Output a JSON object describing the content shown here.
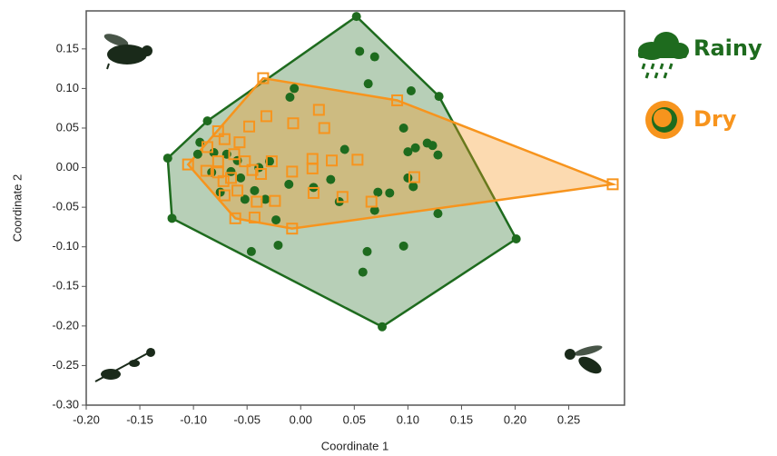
{
  "chart_data": {
    "type": "scatter",
    "hull": true,
    "x_label": "Coordinate 1",
    "y_label": "Coordinate 2",
    "xlim": [
      -0.2,
      0.302
    ],
    "ylim": [
      -0.3,
      0.198
    ],
    "xticks": [
      {
        "value": -0.2,
        "label": "-0.20"
      },
      -0.15,
      {
        "value": -0.1,
        "label": "-0.10"
      },
      -0.05,
      {
        "value": 0,
        "label": "0.00"
      },
      0.05,
      {
        "value": 0.1,
        "label": "0.10"
      },
      0.15,
      {
        "value": 0.2,
        "label": "0.20"
      },
      0.25
    ],
    "yticks": [
      0.15,
      {
        "value": 0.1,
        "label": "0.10"
      },
      0.05,
      {
        "value": 0,
        "label": "0.00"
      },
      -0.05,
      {
        "value": -0.1,
        "label": "-0.10"
      },
      -0.15,
      {
        "value": -0.2,
        "label": "-0.20"
      },
      -0.25,
      {
        "value": -0.3,
        "label": "-0.30"
      }
    ],
    "series": [
      {
        "name": "Rainy",
        "color": "#1e6b1e",
        "marker": "circle",
        "x": [
          0.052,
          0.129,
          0.201,
          0.076,
          -0.12,
          -0.124,
          -0.087,
          0.055,
          0.069,
          0.063,
          0.103,
          -0.006,
          -0.01,
          0.096,
          0.107,
          0.1,
          0.118,
          0.123,
          0.128,
          0.041,
          0.028,
          0.1,
          0.105,
          0.083,
          0.072,
          0.069,
          0.128,
          0.036,
          0.012,
          -0.011,
          -0.023,
          -0.021,
          -0.046,
          0.062,
          0.058,
          0.096,
          -0.094,
          -0.096,
          -0.081,
          -0.069,
          -0.059,
          -0.065,
          -0.056,
          -0.052,
          -0.043,
          -0.033,
          -0.029,
          -0.039,
          -0.075,
          -0.083
        ],
        "y": [
          0.191,
          0.09,
          -0.09,
          -0.201,
          -0.064,
          0.012,
          0.059,
          0.147,
          0.14,
          0.106,
          0.097,
          0.1,
          0.089,
          0.05,
          0.025,
          0.02,
          0.031,
          0.028,
          0.016,
          0.023,
          -0.015,
          -0.013,
          -0.024,
          -0.032,
          -0.031,
          -0.054,
          -0.058,
          -0.043,
          -0.025,
          -0.021,
          -0.066,
          -0.098,
          -0.106,
          -0.106,
          -0.132,
          -0.099,
          0.032,
          0.017,
          0.019,
          0.017,
          0.009,
          -0.005,
          -0.013,
          -0.04,
          -0.029,
          -0.04,
          0.008,
          0.0,
          -0.031,
          -0.006
        ]
      },
      {
        "name": "Dry",
        "color": "#f7941d",
        "marker": "square",
        "x": [
          -0.035,
          0.09,
          0.291,
          -0.008,
          -0.061,
          -0.105,
          -0.077,
          -0.032,
          -0.048,
          -0.007,
          0.017,
          0.022,
          -0.057,
          -0.087,
          -0.071,
          -0.062,
          -0.052,
          -0.077,
          -0.088,
          -0.077,
          -0.065,
          -0.045,
          -0.037,
          -0.027,
          -0.008,
          0.011,
          0.011,
          0.029,
          0.053,
          0.012,
          0.039,
          0.066,
          0.106,
          -0.059,
          -0.071,
          -0.041,
          -0.024,
          -0.043,
          -0.072
        ],
        "y": [
          0.113,
          0.085,
          -0.021,
          -0.077,
          -0.064,
          0.004,
          0.046,
          0.065,
          0.052,
          0.056,
          0.073,
          0.05,
          0.032,
          0.026,
          0.036,
          0.017,
          0.008,
          0.008,
          -0.004,
          -0.006,
          -0.013,
          -0.003,
          -0.008,
          0.008,
          -0.005,
          0.011,
          -0.001,
          0.009,
          0.01,
          -0.032,
          -0.037,
          -0.043,
          -0.012,
          -0.029,
          -0.035,
          -0.043,
          -0.042,
          -0.063,
          -0.017
        ]
      }
    ]
  }
}
